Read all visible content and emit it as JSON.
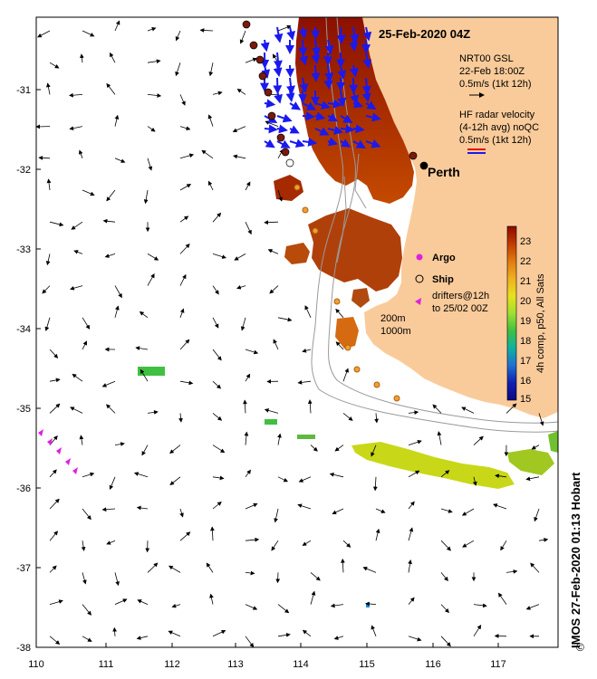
{
  "title": "25-Feb-2020 04Z",
  "axes": {
    "x_ticks": [
      "110",
      "111",
      "112",
      "113",
      "114",
      "115",
      "116",
      "117"
    ],
    "y_ticks": [
      "-31",
      "-32",
      "-33",
      "-34",
      "-35",
      "-36",
      "-37",
      "-38"
    ]
  },
  "city": {
    "name": "Perth"
  },
  "legend": {
    "model_line1": "NRT00 GSL",
    "model_line2": "22-Feb 18:00Z",
    "model_scale": "0.5m/s (1kt 12h)",
    "radar_line1": "HF radar velocity",
    "radar_line2": "(4-12h avg) noQC",
    "radar_scale": "0.5m/s (1kt 12h)",
    "argo": "Argo",
    "ship": "Ship",
    "drifters_line1": "drifters@12h",
    "drifters_line2": "to 25/02 00Z",
    "isobath1": "200m",
    "isobath2": "1000m"
  },
  "colorbar": {
    "label": "4h comp, p50, All Sats",
    "ticks": [
      "23",
      "22",
      "21",
      "20",
      "19",
      "18",
      "17",
      "16",
      "15"
    ],
    "colors": [
      "#8b0a00",
      "#c23a00",
      "#e07a10",
      "#f0b020",
      "#e8e020",
      "#a0e030",
      "#40c040",
      "#10b0a0",
      "#2070d0",
      "#1020b0",
      "#0a0a80"
    ]
  },
  "credit": "IMOS 27-Feb-2020 01:13 Hobart",
  "credit_symbol": "©",
  "map_colors": {
    "land": "#facb9a",
    "radar_arrow": "#1a1aee",
    "radar_arrow_red": "#e01010",
    "drifter": "#e020e0",
    "ship_dot": "#7a1a0a"
  }
}
